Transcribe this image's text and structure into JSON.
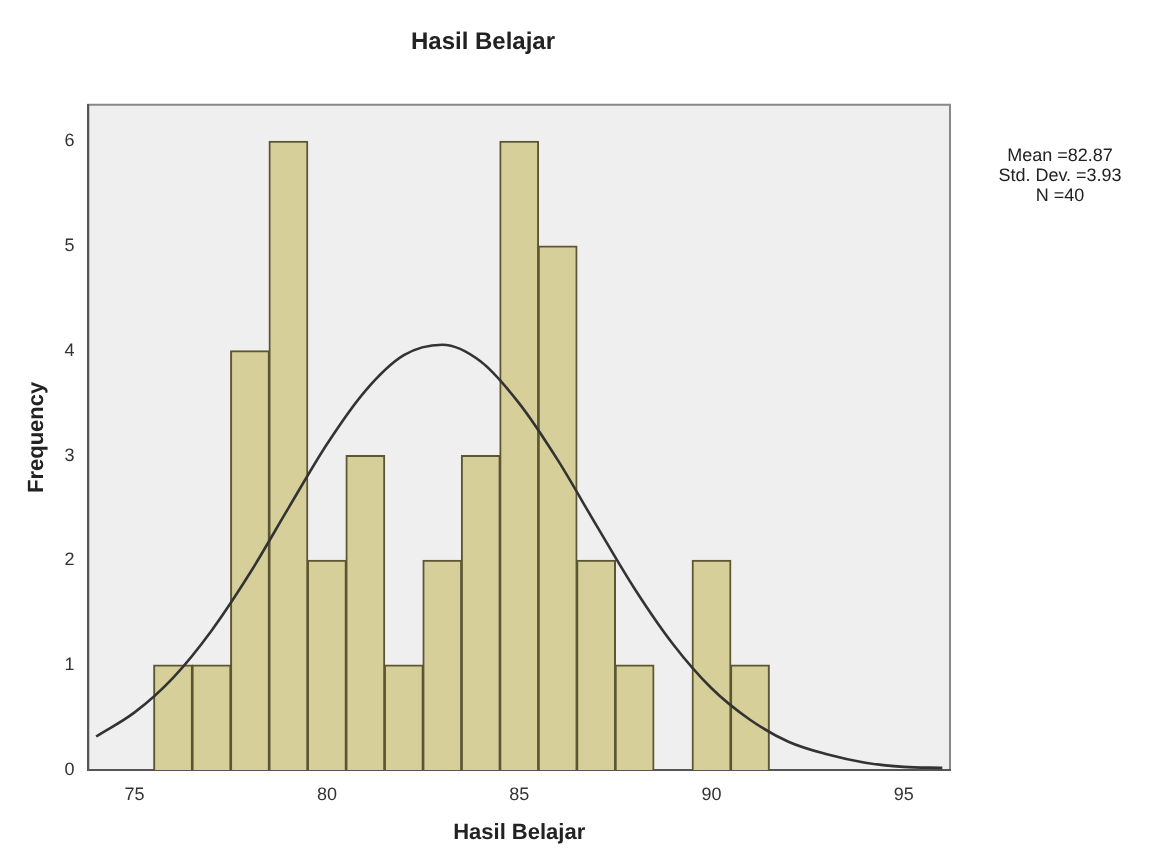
{
  "chart_data": {
    "type": "histogram",
    "title": "Hasil Belajar",
    "xlabel": "Hasil Belajar",
    "ylabel": "Frequency",
    "bins": [
      75.5,
      76.5,
      77.5,
      78.5,
      79.5,
      80.5,
      81.5,
      82.5,
      83.5,
      84.5,
      85.5,
      86.5,
      87.5,
      88.5,
      89.5,
      90.5,
      91.5
    ],
    "values": [
      1,
      1,
      4,
      6,
      2,
      3,
      1,
      2,
      3,
      6,
      5,
      2,
      1,
      0,
      2,
      1
    ],
    "color": "#d6cf9a",
    "series": [
      {
        "type": "line",
        "color": "#333333",
        "marker": "none",
        "x": [
          74,
          75,
          76,
          77,
          78,
          79,
          80,
          81,
          82,
          83,
          84,
          85,
          86,
          87,
          88,
          89,
          90,
          91,
          92,
          93,
          94,
          95,
          96
        ],
        "values": [
          0.32,
          0.55,
          0.88,
          1.33,
          1.88,
          2.5,
          3.11,
          3.62,
          3.96,
          4.06,
          3.9,
          3.5,
          2.96,
          2.34,
          1.73,
          1.2,
          0.78,
          0.48,
          0.27,
          0.15,
          0.07,
          0.03,
          0.02
        ]
      }
    ],
    "xlim": [
      73.8,
      96.2
    ],
    "ylim": [
      0,
      6.35
    ],
    "xticks": [
      75,
      80,
      85,
      90,
      95
    ],
    "yticks": [
      0,
      1,
      2,
      3,
      4,
      5,
      6
    ],
    "annotations": [
      "Mean =82.87",
      "Std. Dev. =3.93",
      "N =40"
    ]
  }
}
